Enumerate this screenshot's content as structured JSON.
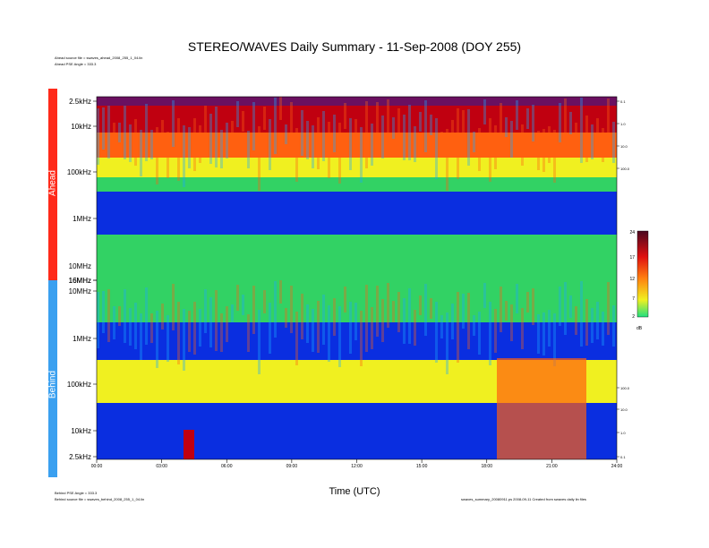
{
  "header": {
    "title": "STEREO/WAVES Daily Summary - 11-Sep-2008 (DOY 255)",
    "ahead_source": "Ahead source file = swaves_ahead_2008_255_1_04.lin",
    "ahead_pse": "Ahead PSE Angle = 333.3",
    "behind_pse": "Behind PSE Angle = 333.3",
    "behind_source": "Behind source file = swaves_behind_2008_255_1_04.lin",
    "footer_right": "swaves_summary_20080911.ps 2008-09-11 Created from swaves daily lin files"
  },
  "chart_data": {
    "type": "heatmap",
    "title": "STEREO/WAVES Daily Summary - 11-Sep-2008 (DOY 255)",
    "xlabel": "Time (UTC)",
    "x_ticks": [
      "00:00",
      "03:00",
      "06:00",
      "09:00",
      "12:00",
      "15:00",
      "18:00",
      "21:00",
      "24:00"
    ],
    "panels": [
      {
        "name": "Ahead",
        "freq_ticks": [
          "2.5kHz",
          "10kHz",
          "100kHz",
          "1MHz",
          "16MHz"
        ],
        "intensity_ticks": [
          "0.1",
          "1.0",
          "10.0",
          "100.0"
        ]
      },
      {
        "name": "Behind",
        "freq_ticks": [
          "10MHz",
          "16MHz",
          "1MHz",
          "100kHz",
          "10kHz",
          "2.5kHz"
        ],
        "intensity_ticks": [
          "100.0",
          "10.0",
          "1.0",
          "0.1"
        ]
      }
    ],
    "colorbar": {
      "unit": "dB",
      "ticks": [
        "24",
        "17",
        "12",
        "7",
        "2"
      ]
    },
    "colors": {
      "low": "#0a2ee0",
      "mid_low": "#1aa8ff",
      "mid": "#32d264",
      "mid_high": "#f0f020",
      "high": "#ff6010",
      "max": "#c00010",
      "extreme": "#6a1060",
      "ahead_bar": "#ff2a1a",
      "behind_bar": "#3aa0f0"
    }
  }
}
